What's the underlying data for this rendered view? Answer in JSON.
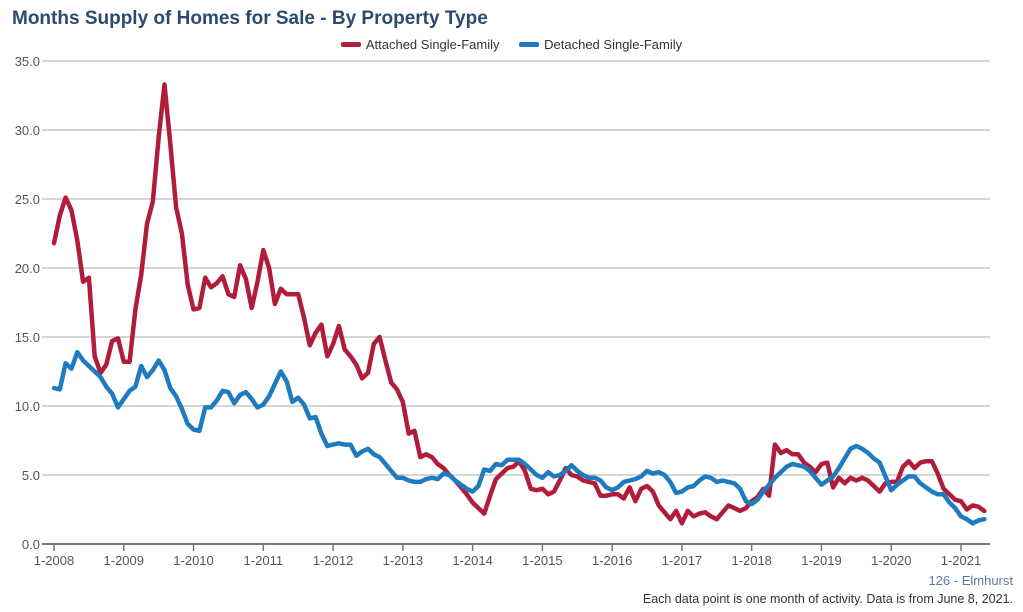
{
  "chart_data": {
    "type": "line",
    "title": "Months Supply of Homes for Sale - By Property Type",
    "xlabel": "",
    "ylabel": "",
    "ylim": [
      0,
      35
    ],
    "yticks": [
      "0.0",
      "5.0",
      "10.0",
      "15.0",
      "20.0",
      "25.0",
      "30.0",
      "35.0"
    ],
    "xticks": [
      "1-2008",
      "1-2009",
      "1-2010",
      "1-2011",
      "1-2012",
      "1-2013",
      "1-2014",
      "1-2015",
      "1-2016",
      "1-2017",
      "1-2018",
      "1-2019",
      "1-2020",
      "1-2021"
    ],
    "x_start": "1-2008",
    "x_interval": "month",
    "grid": true,
    "legend_position": "top-center",
    "series": [
      {
        "name": "Attached Single-Family",
        "color": "#b01c3a",
        "values": [
          21.8,
          23.8,
          25.1,
          24.2,
          22.0,
          19.0,
          19.3,
          13.6,
          12.4,
          13.0,
          14.7,
          14.9,
          13.2,
          13.2,
          17.0,
          19.5,
          23.2,
          24.8,
          29.5,
          33.3,
          29.0,
          24.4,
          22.5,
          18.8,
          17.0,
          17.1,
          19.3,
          18.6,
          18.9,
          19.4,
          18.1,
          17.9,
          20.2,
          19.2,
          17.1,
          19.0,
          21.3,
          20.0,
          17.4,
          18.5,
          18.1,
          18.1,
          18.1,
          16.4,
          14.4,
          15.3,
          15.9,
          13.6,
          14.5,
          15.8,
          14.1,
          13.6,
          13.0,
          12.0,
          12.4,
          14.5,
          15.0,
          13.3,
          11.7,
          11.2,
          10.3,
          8.0,
          8.2,
          6.3,
          6.5,
          6.3,
          5.8,
          5.5,
          5.0,
          4.6,
          4.1,
          3.6,
          3.0,
          2.6,
          2.2,
          3.5,
          4.7,
          5.1,
          5.5,
          5.6,
          6.0,
          5.3,
          4.0,
          3.9,
          4.0,
          3.6,
          3.8,
          4.6,
          5.5,
          5.0,
          4.9,
          4.6,
          4.5,
          4.4,
          3.5,
          3.5,
          3.6,
          3.6,
          3.3,
          4.1,
          3.1,
          4.0,
          4.2,
          3.8,
          2.8,
          2.3,
          1.8,
          2.4,
          1.5,
          2.4,
          2.0,
          2.2,
          2.3,
          2.0,
          1.8,
          2.3,
          2.8,
          2.6,
          2.4,
          2.6,
          3.1,
          3.4,
          4.0,
          3.5,
          7.2,
          6.6,
          6.8,
          6.5,
          6.5,
          5.9,
          5.6,
          5.2,
          5.8,
          5.9,
          4.1,
          4.8,
          4.4,
          4.8,
          4.6,
          4.8,
          4.6,
          4.2,
          3.8,
          4.4,
          4.5,
          4.5,
          5.6,
          6.0,
          5.5,
          5.9,
          6.0,
          6.0,
          5.1,
          4.0,
          3.6,
          3.2,
          3.1,
          2.5,
          2.8,
          2.7,
          2.4
        ]
      },
      {
        "name": "Detached Single-Family",
        "color": "#1f7bbf",
        "values": [
          11.3,
          11.2,
          13.1,
          12.7,
          13.9,
          13.3,
          12.9,
          12.5,
          12.1,
          11.4,
          10.9,
          9.9,
          10.5,
          11.1,
          11.4,
          12.9,
          12.1,
          12.6,
          13.3,
          12.6,
          11.3,
          10.7,
          9.8,
          8.7,
          8.3,
          8.2,
          9.9,
          9.9,
          10.4,
          11.1,
          11.0,
          10.2,
          10.8,
          11.0,
          10.5,
          9.9,
          10.1,
          10.7,
          11.6,
          12.5,
          11.8,
          10.3,
          10.6,
          10.1,
          9.1,
          9.2,
          8.0,
          7.1,
          7.2,
          7.3,
          7.2,
          7.2,
          6.4,
          6.7,
          6.9,
          6.5,
          6.3,
          5.8,
          5.3,
          4.8,
          4.8,
          4.6,
          4.5,
          4.5,
          4.7,
          4.8,
          4.7,
          5.1,
          5.0,
          4.6,
          4.3,
          4.0,
          3.8,
          4.2,
          5.4,
          5.3,
          5.8,
          5.7,
          6.1,
          6.1,
          6.1,
          5.8,
          5.4,
          5.0,
          4.8,
          5.2,
          4.9,
          5.0,
          5.3,
          5.7,
          5.3,
          5.0,
          4.8,
          4.8,
          4.6,
          4.1,
          3.9,
          4.1,
          4.5,
          4.6,
          4.7,
          4.9,
          5.3,
          5.1,
          5.2,
          5.0,
          4.5,
          3.7,
          3.8,
          4.1,
          4.2,
          4.6,
          4.9,
          4.8,
          4.5,
          4.6,
          4.5,
          4.4,
          4.0,
          3.1,
          2.9,
          3.2,
          3.8,
          4.3,
          4.8,
          5.2,
          5.6,
          5.8,
          5.7,
          5.6,
          5.3,
          4.8,
          4.3,
          4.6,
          4.9,
          5.5,
          6.2,
          6.9,
          7.1,
          6.9,
          6.6,
          6.2,
          5.9,
          4.9,
          3.9,
          4.3,
          4.6,
          4.9,
          4.9,
          4.4,
          4.1,
          3.8,
          3.6,
          3.6,
          3.0,
          2.6,
          2.0,
          1.8,
          1.5,
          1.7,
          1.8
        ]
      }
    ]
  },
  "footer": {
    "area": "126 - Elmhurst",
    "note": "Each data point is one month of activity. Data is from June 8, 2021."
  }
}
